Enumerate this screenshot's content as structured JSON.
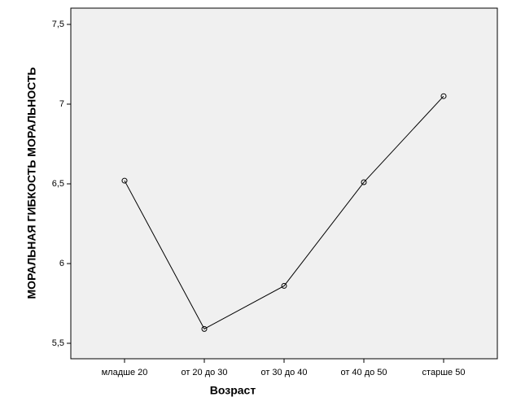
{
  "chart_data": {
    "type": "line",
    "x_label": "Возраст",
    "y_label": "МОРАЛЬНАЯ ГИБКОСТЬ МОРАЛЬНОСТЬ",
    "categories": [
      "младше 20",
      "от 20 до 30",
      "от 30 до 40",
      "от 40 до 50",
      "старше 50"
    ],
    "values": [
      6.52,
      5.59,
      5.86,
      6.51,
      7.05
    ],
    "color": "#000000",
    "ylim": [
      5.403,
      7.602
    ],
    "yticks": [
      {
        "value": 5.5,
        "label": "5,5"
      },
      6,
      {
        "value": 6.5,
        "label": "6,5"
      },
      7,
      {
        "value": 7.5,
        "label": "7,5"
      }
    ]
  }
}
